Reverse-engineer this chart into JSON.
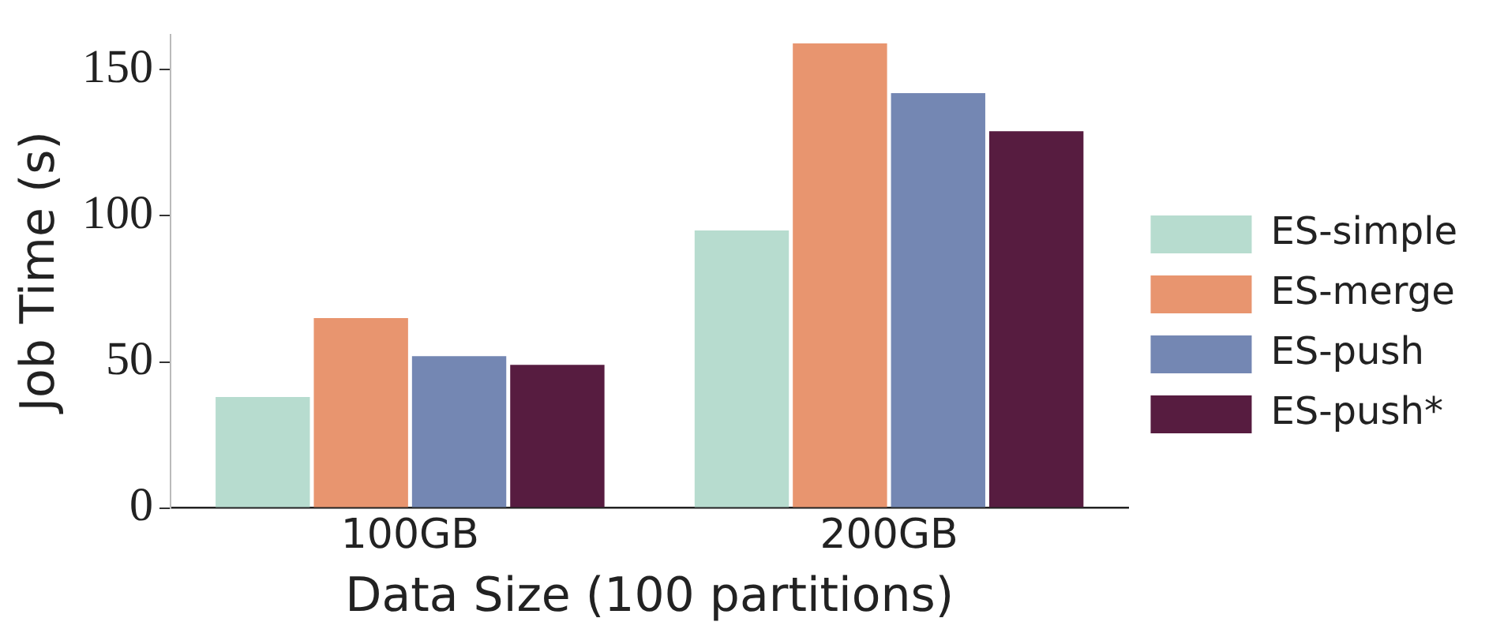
{
  "chart_data": {
    "type": "bar",
    "xlabel": "Data Size (100 partitions)",
    "ylabel": "Job Time (s)",
    "categories": [
      "100GB",
      "200GB"
    ],
    "series": [
      {
        "name": "ES-simple",
        "color": "#b7dccf",
        "values": [
          38,
          95
        ]
      },
      {
        "name": "ES-merge",
        "color": "#e8956f",
        "values": [
          65,
          159
        ]
      },
      {
        "name": "ES-push",
        "color": "#7487b3",
        "values": [
          52,
          142
        ]
      },
      {
        "name": "ES-push*",
        "color": "#571c40",
        "values": [
          49,
          129
        ]
      }
    ],
    "ylim": [
      0,
      162
    ],
    "yticks": [
      0,
      50,
      100,
      150
    ],
    "grid": false,
    "legend": "right"
  }
}
